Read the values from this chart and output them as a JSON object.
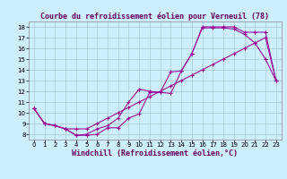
{
  "title": "Courbe du refroidissement éolien pour Verneuil (78)",
  "xlabel": "Windchill (Refroidissement éolien,°C)",
  "bg_color": "#cceeff",
  "line_color": "#990099",
  "grid_color": "#aacccc",
  "xlim": [
    -0.5,
    23.5
  ],
  "ylim": [
    7.5,
    18.5
  ],
  "xticks": [
    0,
    1,
    2,
    3,
    4,
    5,
    6,
    7,
    8,
    9,
    10,
    11,
    12,
    13,
    14,
    15,
    16,
    17,
    18,
    19,
    20,
    21,
    22,
    23
  ],
  "yticks": [
    8,
    9,
    10,
    11,
    12,
    13,
    14,
    15,
    16,
    17,
    18
  ],
  "line1_x": [
    0,
    1,
    2,
    3,
    4,
    5,
    6,
    7,
    8,
    9,
    10,
    11,
    12,
    13,
    14,
    15,
    16,
    17,
    18,
    19,
    20,
    21,
    22,
    23
  ],
  "line1_y": [
    10.4,
    9.0,
    8.8,
    8.5,
    7.9,
    7.9,
    8.0,
    8.6,
    8.6,
    9.5,
    9.9,
    11.9,
    11.9,
    13.8,
    13.9,
    15.5,
    17.9,
    17.9,
    17.9,
    17.8,
    17.3,
    16.5,
    15.0,
    13.0
  ],
  "line2_x": [
    0,
    1,
    2,
    3,
    4,
    5,
    6,
    7,
    8,
    9,
    10,
    11,
    12,
    13,
    14,
    15,
    16,
    17,
    18,
    19,
    20,
    21,
    22,
    23
  ],
  "line2_y": [
    10.4,
    9.0,
    8.8,
    8.5,
    7.9,
    8.0,
    8.5,
    8.8,
    9.5,
    11.0,
    12.2,
    12.0,
    11.9,
    11.8,
    13.9,
    15.5,
    18.0,
    18.0,
    18.0,
    18.0,
    17.5,
    17.5,
    17.5,
    13.0
  ],
  "line3_x": [
    0,
    1,
    2,
    3,
    4,
    5,
    6,
    7,
    8,
    9,
    10,
    11,
    12,
    13,
    14,
    15,
    16,
    17,
    18,
    19,
    20,
    21,
    22,
    23
  ],
  "line3_y": [
    10.4,
    9.0,
    8.8,
    8.5,
    8.5,
    8.5,
    9.0,
    9.5,
    10.0,
    10.5,
    11.0,
    11.5,
    12.0,
    12.5,
    13.0,
    13.5,
    14.0,
    14.5,
    15.0,
    15.5,
    16.0,
    16.5,
    17.0,
    13.0
  ],
  "title_fontsize": 6,
  "xlabel_fontsize": 6,
  "tick_fontsize": 5
}
